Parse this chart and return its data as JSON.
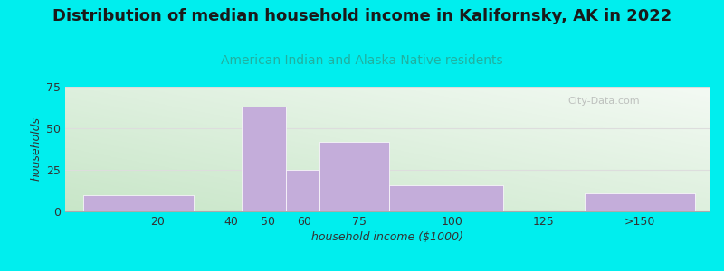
{
  "title": "Distribution of median household income in Kalifornsky, AK in 2022",
  "subtitle": "American Indian and Alaska Native residents",
  "xlabel": "household income ($1000)",
  "ylabel": "households",
  "background_outer": "#00EEEE",
  "bar_color": "#C4ADDA",
  "bar_edgecolor": "#C4ADDA",
  "ylim": [
    0,
    75
  ],
  "yticks": [
    0,
    25,
    50,
    75
  ],
  "bars": [
    {
      "x_left": 0,
      "x_right": 30,
      "height": 10
    },
    {
      "x_left": 43,
      "x_right": 55,
      "height": 63
    },
    {
      "x_left": 55,
      "x_right": 64,
      "height": 25
    },
    {
      "x_left": 64,
      "x_right": 83,
      "height": 42
    },
    {
      "x_left": 83,
      "x_right": 114,
      "height": 16
    },
    {
      "x_left": 136,
      "x_right": 166,
      "height": 11
    }
  ],
  "xtick_labels": [
    "20",
    "40",
    "50",
    "60",
    "75",
    "100",
    "125",
    ">150"
  ],
  "xtick_positions": [
    20,
    40,
    50,
    60,
    75,
    100,
    125,
    151
  ],
  "xlim": [
    -5,
    170
  ],
  "title_fontsize": 13,
  "subtitle_fontsize": 10,
  "subtitle_color": "#20B0A0",
  "axis_label_fontsize": 9,
  "tick_fontsize": 9,
  "watermark": "City-Data.com",
  "grid_color": "#dddddd"
}
